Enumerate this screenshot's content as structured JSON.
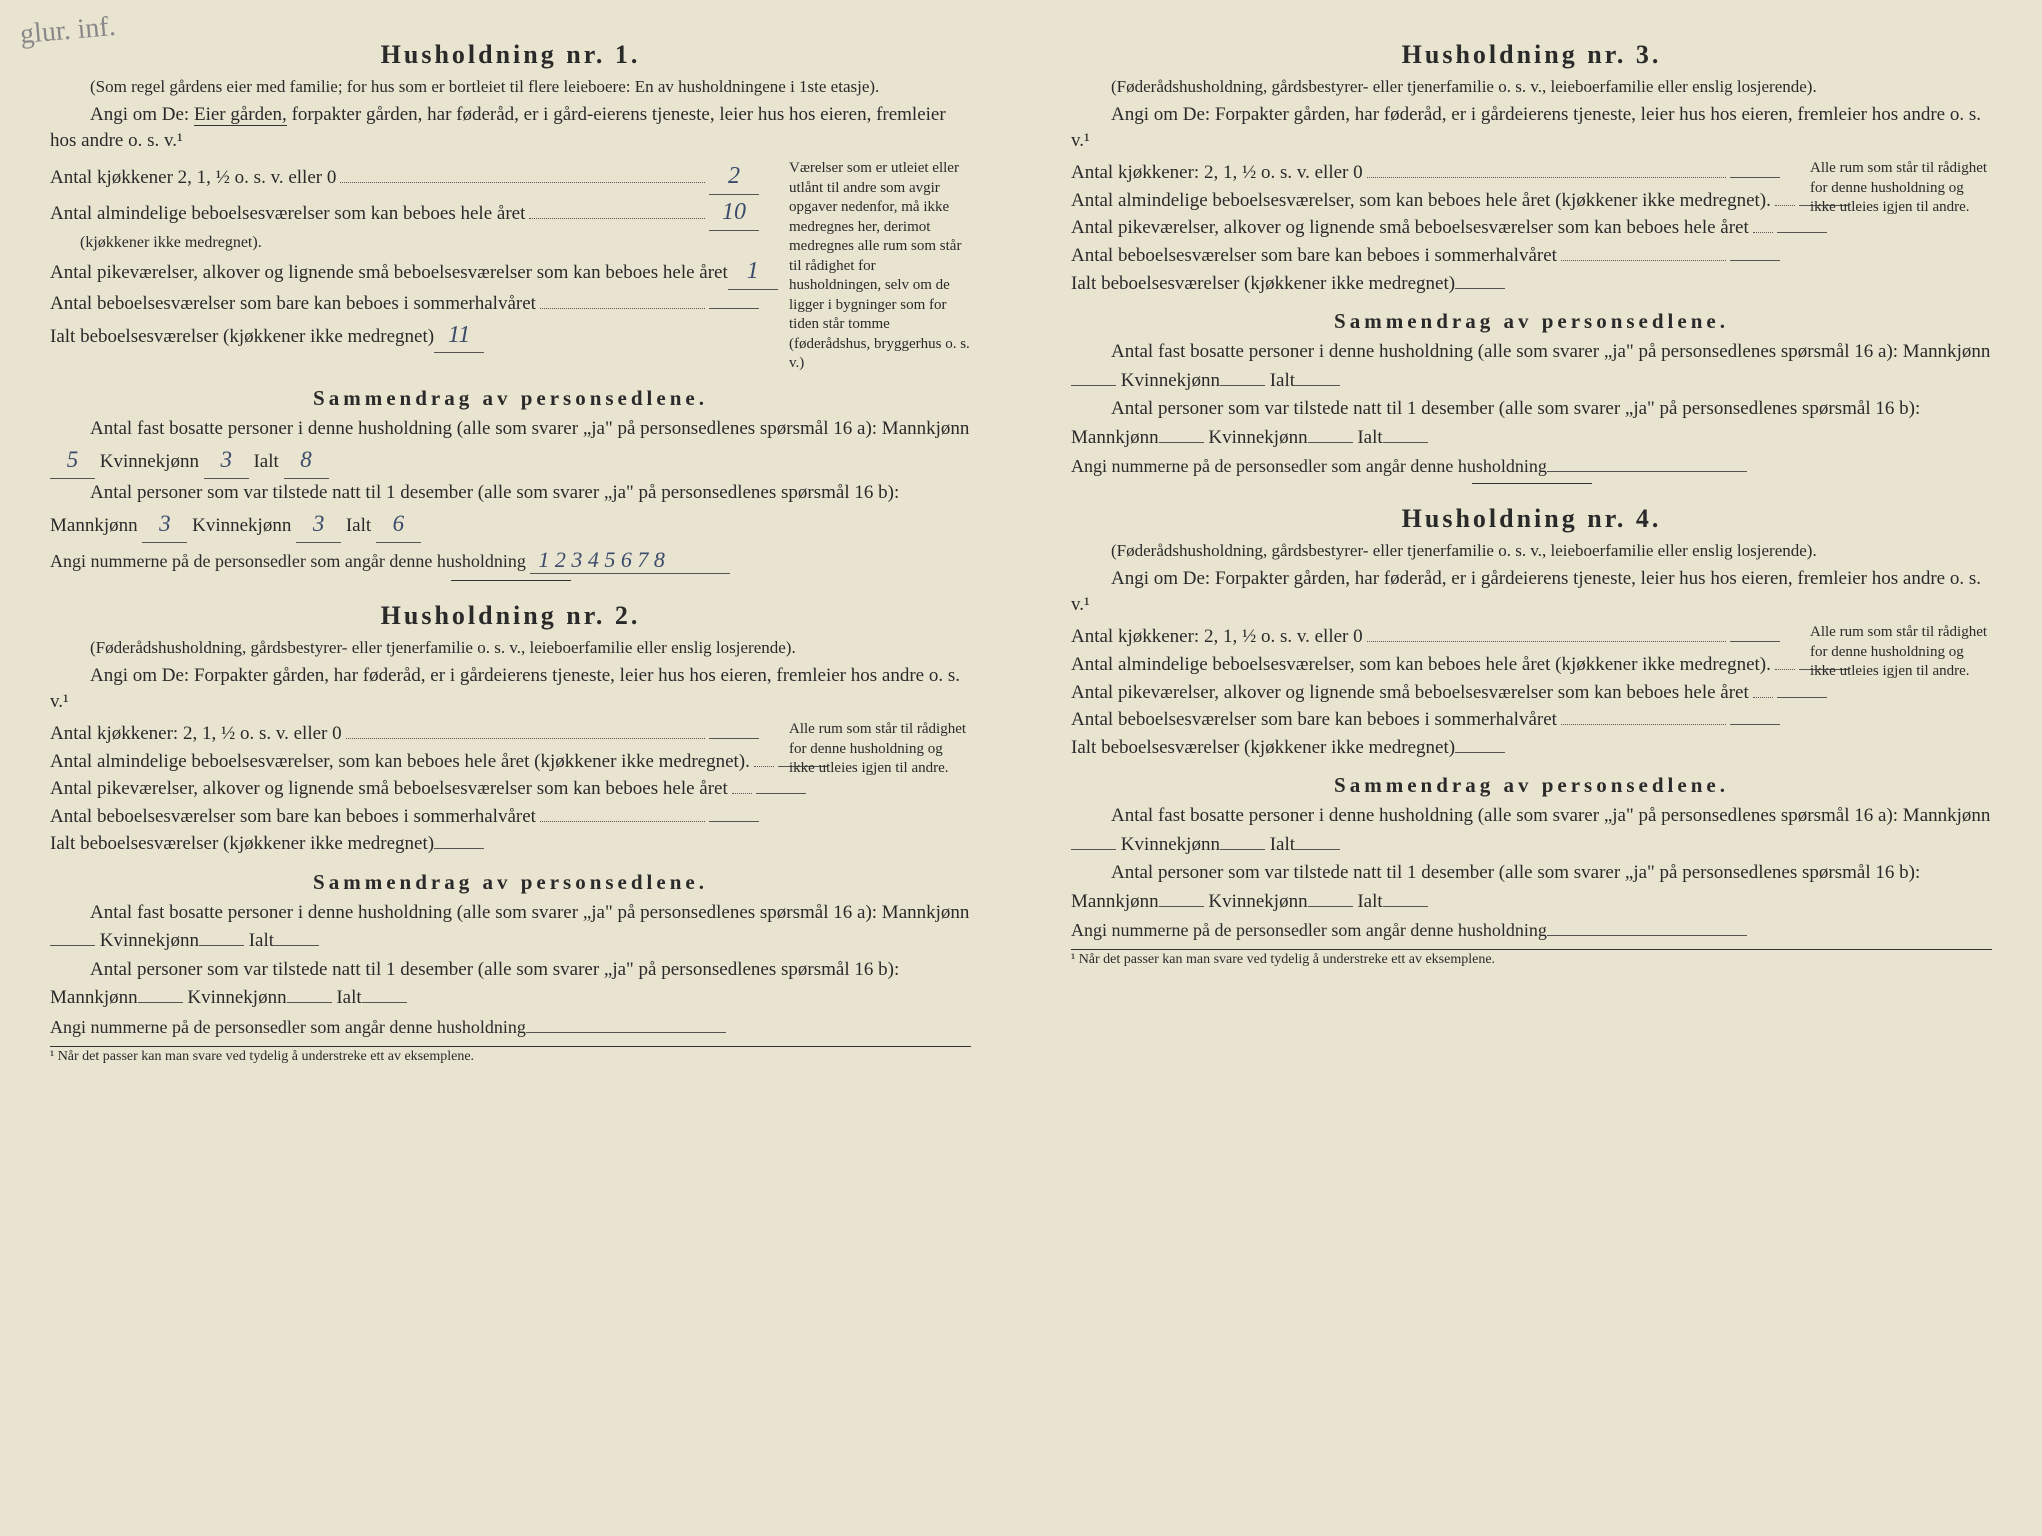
{
  "corner_note": "glur. inf.",
  "sections": {
    "h1": {
      "title": "Husholdning nr. 1.",
      "subtitle": "(Som regel gårdens eier med familie; for hus som er bortleiet til flere leieboere: En av husholdningene i 1ste etasje).",
      "angi_prefix": "Angi om De: ",
      "angi_underlined": "Eier gården,",
      "angi_rest": " forpakter gården, har føderåd, er i gård-eierens tjeneste, leier hus hos eieren, fremleier hos andre o. s. v.¹",
      "kjokken_label": "Antal kjøkkener 2, 1, ½ o. s. v. eller 0",
      "kjokken_val": "2",
      "almind_label": "Antal almindelige beboelsesværelser som kan beboes hele året",
      "almind_note": "(kjøkkener ikke medregnet).",
      "almind_val": "10",
      "pike_label": "Antal pikeværelser, alkover og lignende små beboelsesværelser som kan beboes hele året",
      "pike_val": "1",
      "sommer_label": "Antal beboelsesværelser som bare kan beboes i sommerhalvåret",
      "sommer_val": "",
      "ialt_label": "Ialt beboelsesværelser (kjøkkener ikke medregnet)",
      "ialt_val": "11",
      "side_note": "Værelser som er utleiet eller utlånt til andre som avgir opgaver nedenfor, må ikke medregnes her, derimot medregnes alle rum som står til rådighet for husholdningen, selv om de ligger i bygninger som for tiden står tomme (føderådshus, bryggerhus o. s. v.)",
      "sammendrag_title": "Sammendrag av personsedlene.",
      "fast_text": "Antal fast bosatte personer i denne husholdning (alle som svarer „ja\" på personsedlenes spørsmål 16 a): Mannkjønn",
      "fast_m": "5",
      "fast_k_label": "Kvinnekjønn",
      "fast_k": "3",
      "fast_i_label": "Ialt",
      "fast_i": "8",
      "tilstede_text": "Antal personer som var tilstede natt til 1 desember (alle som svarer „ja\" på personsedlenes spørsmål 16 b): Mannkjønn",
      "til_m": "3",
      "til_k": "3",
      "til_i": "6",
      "nummer_label": "Angi nummerne på de personsedler som angår denne husholdning",
      "nummer_val": "1 2 3 4 5 6 7 8"
    },
    "h2": {
      "title": "Husholdning nr. 2.",
      "subtitle": "(Føderådshusholdning, gårdsbestyrer- eller tjenerfamilie o. s. v., leieboerfamilie eller enslig losjerende).",
      "angi": "Angi om De: Forpakter gården, har føderåd, er i gårdeierens tjeneste, leier hus hos eieren, fremleier hos andre o. s. v.¹",
      "kjokken_label": "Antal kjøkkener: 2, 1, ½ o. s. v. eller 0",
      "almind_label": "Antal almindelige beboelsesværelser, som kan beboes hele året (kjøkkener ikke medregnet).",
      "pike_label": "Antal pikeværelser, alkover og lignende små beboelsesværelser som kan beboes hele året",
      "sommer_label": "Antal beboelsesværelser som bare kan beboes i sommerhalvåret",
      "ialt_label": "Ialt beboelsesværelser (kjøkkener ikke medregnet)",
      "side_note": "Alle rum som står til rådighet for denne husholdning og ikke utleies igjen til andre.",
      "nummer_label": "Angi nummerne på de personsedler som angår denne husholdning"
    },
    "h3": {
      "title": "Husholdning nr. 3.",
      "subtitle": "(Føderådshusholdning, gårdsbestyrer- eller tjenerfamilie o. s. v., leieboerfamilie eller enslig losjerende).",
      "angi": "Angi om De: Forpakter gården, har føderåd, er i gårdeierens tjeneste, leier hus hos eieren, fremleier hos andre o. s. v.¹"
    },
    "h4": {
      "title": "Husholdning nr. 4."
    }
  },
  "common": {
    "sammendrag_title": "Sammendrag av personsedlene.",
    "fast_text_a": "Antal fast bosatte personer i denne husholdning (alle som svarer „ja\" på personsedlenes spørsmål 16 a): Mannkjønn",
    "tilstede_text_b": "Antal personer som var tilstede natt til 1 desember (alle som svarer „ja\" på personsedlenes spørsmål 16 b): Mannkjønn",
    "kvinne": "Kvinnekjønn",
    "ialt": "Ialt",
    "footnote": "¹ Når det passer kan man svare ved tydelig å understreke ett av eksemplene."
  }
}
